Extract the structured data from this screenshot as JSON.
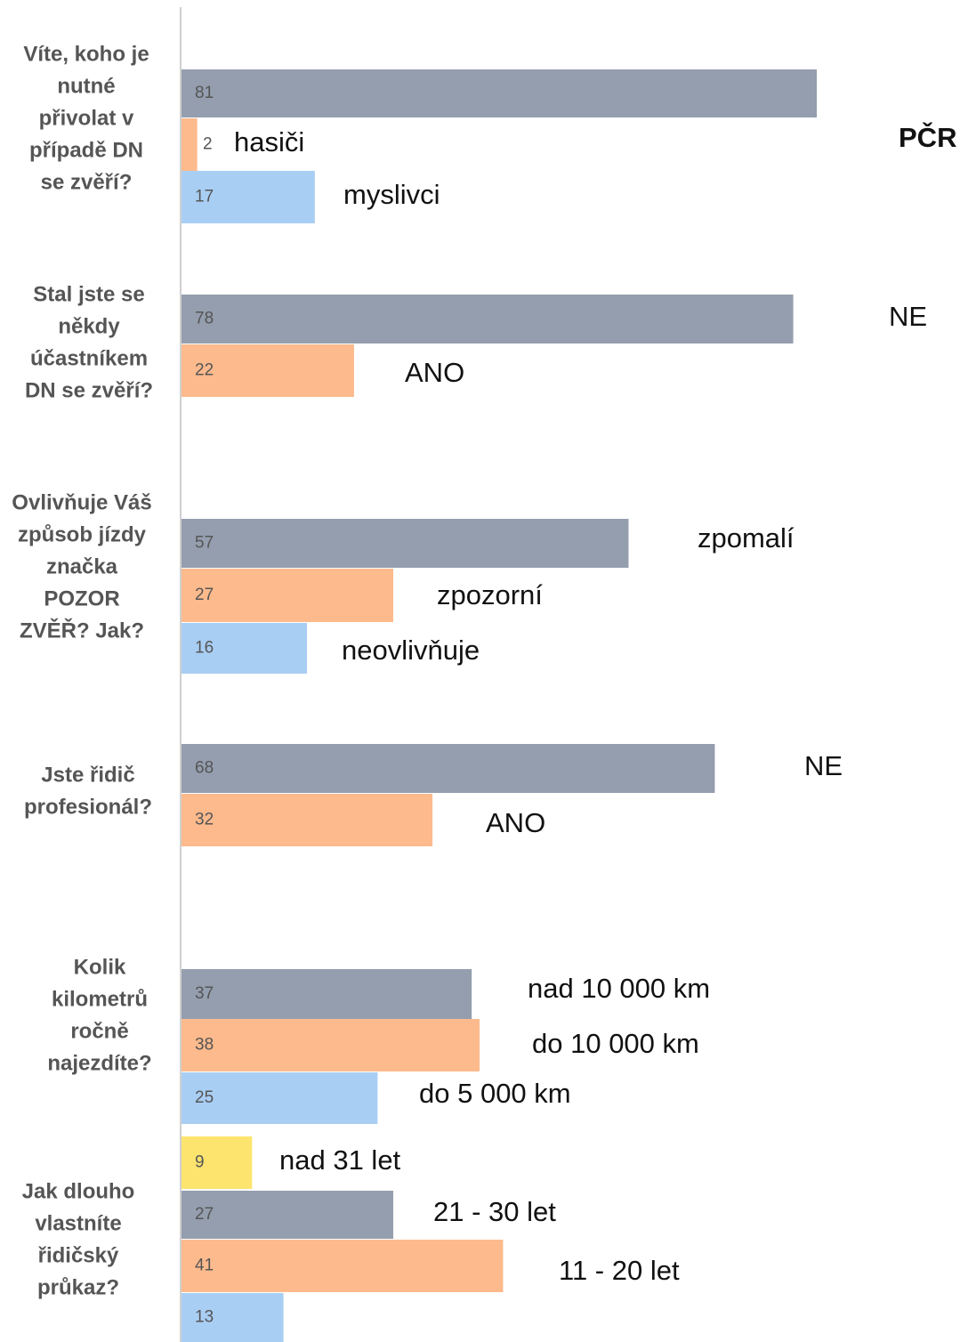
{
  "chart_data": {
    "type": "bar",
    "orientation": "horizontal",
    "groups": [
      {
        "question": [
          "Víte, koho je",
          "nutné",
          "přivolat v",
          "případě DN",
          "se zvěří?"
        ],
        "bars": [
          {
            "value": 81,
            "color": "#949eae",
            "label": "PČR",
            "bold": true
          },
          {
            "value": 2,
            "color": "#fdba8c",
            "label": "hasiči"
          },
          {
            "value": 17,
            "color": "#a9cef4",
            "label": "myslivci"
          }
        ]
      },
      {
        "question": [
          "Stal jste se",
          "někdy",
          "účastníkem",
          "DN se zvěří?"
        ],
        "bars": [
          {
            "value": 78,
            "color": "#949eae",
            "label": "NE"
          },
          {
            "value": 22,
            "color": "#fdba8c",
            "label": "ANO"
          }
        ]
      },
      {
        "question": [
          "Ovlivňuje Váš",
          "způsob jízdy",
          "značka",
          "POZOR",
          "ZVĚŘ?  Jak?"
        ],
        "bars": [
          {
            "value": 57,
            "color": "#949eae",
            "label": "zpomalí"
          },
          {
            "value": 27,
            "color": "#fdba8c",
            "label": "zpozorní"
          },
          {
            "value": 16,
            "color": "#a9cef4",
            "label": "neovlivňuje"
          }
        ]
      },
      {
        "question": [
          "Jste řidič",
          "profesionál?"
        ],
        "bars": [
          {
            "value": 68,
            "color": "#949eae",
            "label": "NE"
          },
          {
            "value": 32,
            "color": "#fdba8c",
            "label": "ANO"
          }
        ]
      },
      {
        "question": [
          "Kolik",
          "kilometrů",
          "ročně",
          "najezdíte?"
        ],
        "bars": [
          {
            "value": 37,
            "color": "#949eae",
            "label": "nad 10 000 km"
          },
          {
            "value": 38,
            "color": "#fdba8c",
            "label": "do 10 000 km"
          },
          {
            "value": 25,
            "color": "#a9cef4",
            "label": "do 5 000 km"
          }
        ]
      },
      {
        "question": [
          "Jak dlouho",
          "vlastníte",
          "řidičský",
          "průkaz?"
        ],
        "bars": [
          {
            "value": 9,
            "color": "#fde46f",
            "label": "nad 31 let"
          },
          {
            "value": 27,
            "color": "#949eae",
            "label": "21 - 30 let"
          },
          {
            "value": 41,
            "color": "#fdba8c",
            "label": "11 - 20 let"
          },
          {
            "value": 13,
            "color": "#a9cef4"
          }
        ]
      }
    ]
  }
}
